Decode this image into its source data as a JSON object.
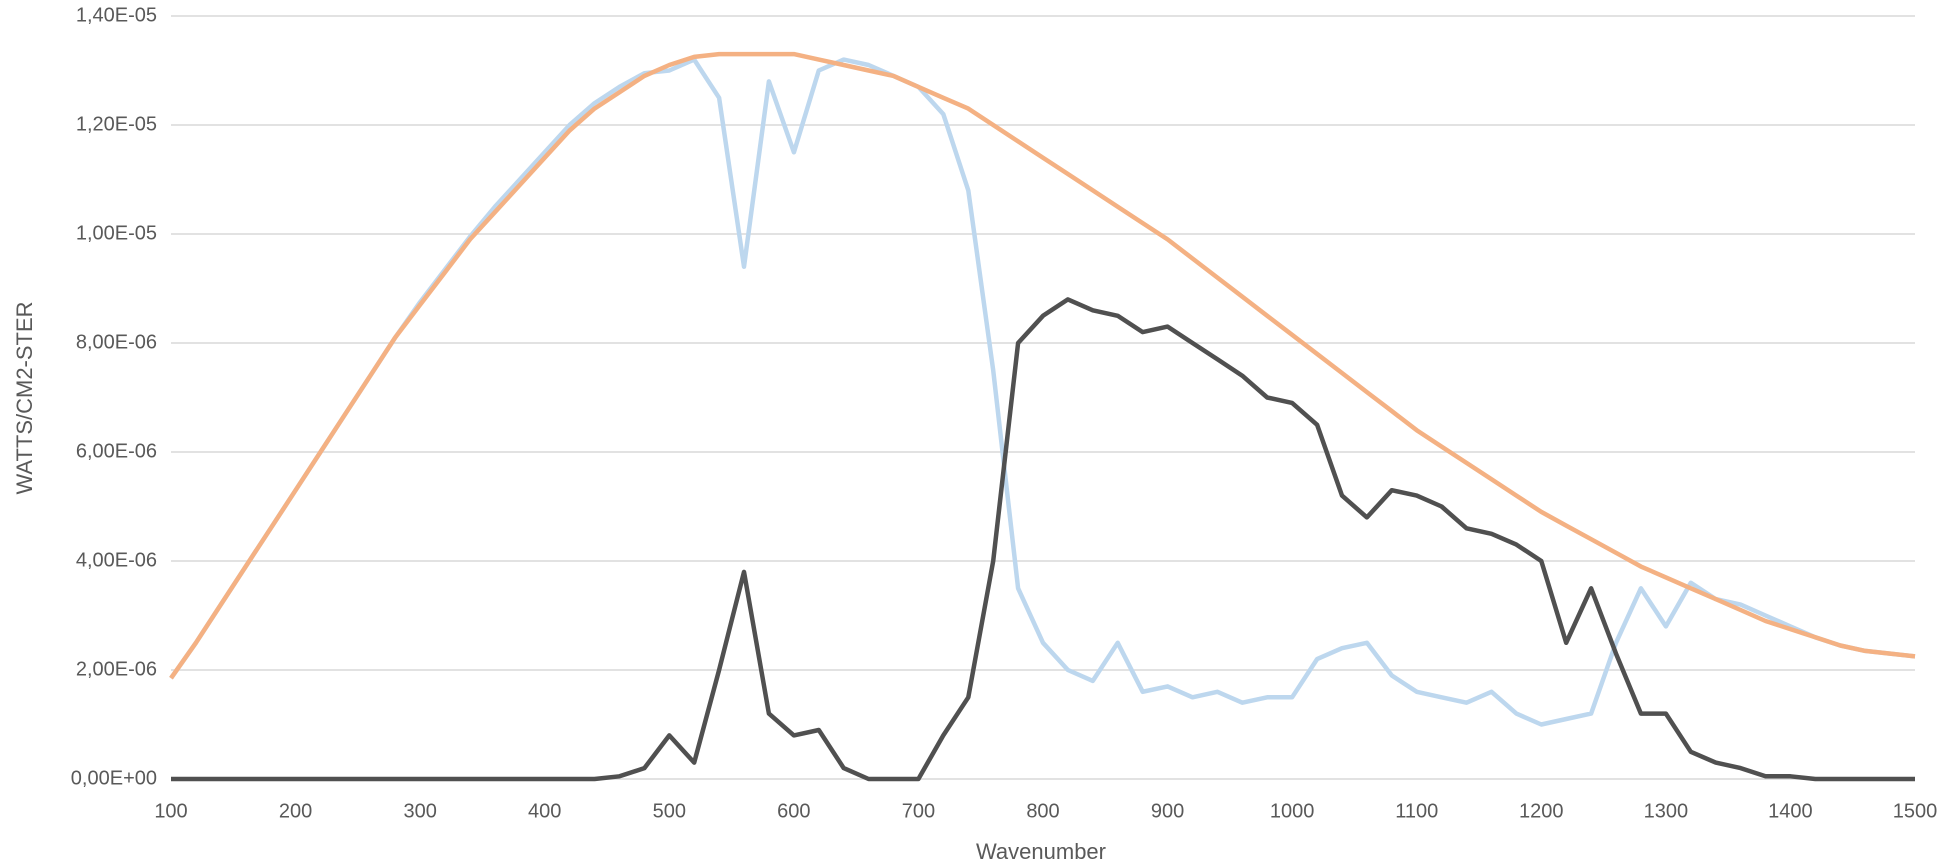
{
  "chart_data": {
    "type": "line",
    "xlabel": "Wavenumber",
    "ylabel": "WATTS/CM2-STER",
    "x": [
      100,
      120,
      140,
      160,
      180,
      200,
      220,
      240,
      260,
      280,
      300,
      320,
      340,
      360,
      380,
      400,
      420,
      440,
      460,
      480,
      500,
      520,
      540,
      560,
      580,
      600,
      620,
      640,
      660,
      680,
      700,
      720,
      740,
      760,
      780,
      800,
      820,
      840,
      860,
      880,
      900,
      920,
      940,
      960,
      980,
      1000,
      1020,
      1040,
      1060,
      1080,
      1100,
      1120,
      1140,
      1160,
      1180,
      1200,
      1220,
      1240,
      1260,
      1280,
      1300,
      1320,
      1340,
      1360,
      1380,
      1400,
      1420,
      1440,
      1460,
      1480,
      1500
    ],
    "series": [
      {
        "color": "#bdd7ee",
        "values": [
          1.85e-06,
          2.5e-06,
          3.2e-06,
          3.9e-06,
          4.6e-06,
          5.3e-06,
          6e-06,
          6.7e-06,
          7.4e-06,
          8.1e-06,
          8.75e-06,
          9.35e-06,
          9.95e-06,
          1.05e-05,
          1.1e-05,
          1.15e-05,
          1.2e-05,
          1.24e-05,
          1.27e-05,
          1.295e-05,
          1.3e-05,
          1.32e-05,
          1.25e-05,
          9.4e-06,
          1.28e-05,
          1.15e-05,
          1.3e-05,
          1.32e-05,
          1.31e-05,
          1.29e-05,
          1.27e-05,
          1.22e-05,
          1.08e-05,
          7.5e-06,
          3.5e-06,
          2.5e-06,
          2e-06,
          1.8e-06,
          2.5e-06,
          1.6e-06,
          1.7e-06,
          1.5e-06,
          1.6e-06,
          1.4e-06,
          1.5e-06,
          1.5e-06,
          2.2e-06,
          2.4e-06,
          2.5e-06,
          1.9e-06,
          1.6e-06,
          1.5e-06,
          1.4e-06,
          1.6e-06,
          1.2e-06,
          1e-06,
          1.1e-06,
          1.2e-06,
          2.5e-06,
          3.5e-06,
          2.8e-06,
          3.6e-06,
          3.3e-06,
          3.2e-06,
          3e-06,
          2.8e-06,
          2.6e-06,
          2.45e-06,
          2.35e-06,
          2.3e-06,
          2.25e-06
        ]
      },
      {
        "color": "#f4b183",
        "values": [
          1.85e-06,
          2.5e-06,
          3.2e-06,
          3.9e-06,
          4.6e-06,
          5.3e-06,
          6e-06,
          6.7e-06,
          7.4e-06,
          8.1e-06,
          8.7e-06,
          9.3e-06,
          9.9e-06,
          1.04e-05,
          1.09e-05,
          1.14e-05,
          1.19e-05,
          1.23e-05,
          1.26e-05,
          1.29e-05,
          1.31e-05,
          1.325e-05,
          1.33e-05,
          1.33e-05,
          1.33e-05,
          1.33e-05,
          1.32e-05,
          1.31e-05,
          1.3e-05,
          1.29e-05,
          1.27e-05,
          1.25e-05,
          1.23e-05,
          1.2e-05,
          1.17e-05,
          1.14e-05,
          1.11e-05,
          1.08e-05,
          1.05e-05,
          1.02e-05,
          9.9e-06,
          9.55e-06,
          9.2e-06,
          8.85e-06,
          8.5e-06,
          8.15e-06,
          7.8e-06,
          7.45e-06,
          7.1e-06,
          6.75e-06,
          6.4e-06,
          6.1e-06,
          5.8e-06,
          5.5e-06,
          5.2e-06,
          4.9e-06,
          4.65e-06,
          4.4e-06,
          4.15e-06,
          3.9e-06,
          3.7e-06,
          3.5e-06,
          3.3e-06,
          3.1e-06,
          2.9e-06,
          2.75e-06,
          2.6e-06,
          2.45e-06,
          2.35e-06,
          2.3e-06,
          2.25e-06
        ]
      },
      {
        "color": "#505050",
        "values": [
          0,
          0,
          0,
          0,
          0,
          0,
          0,
          0,
          0,
          0,
          0,
          0,
          0,
          0,
          0,
          0,
          0,
          0,
          5e-08,
          2e-07,
          8e-07,
          3e-07,
          2e-06,
          3.8e-06,
          1.2e-06,
          8e-07,
          9e-07,
          2e-07,
          0,
          0,
          0,
          8e-07,
          1.5e-06,
          4e-06,
          8e-06,
          8.5e-06,
          8.8e-06,
          8.6e-06,
          8.5e-06,
          8.2e-06,
          8.3e-06,
          8e-06,
          7.7e-06,
          7.4e-06,
          7e-06,
          6.9e-06,
          6.5e-06,
          5.2e-06,
          4.8e-06,
          5.3e-06,
          5.2e-06,
          5e-06,
          4.6e-06,
          4.5e-06,
          4.3e-06,
          4e-06,
          2.5e-06,
          3.5e-06,
          2.3e-06,
          1.2e-06,
          1.2e-06,
          5e-07,
          3e-07,
          2e-07,
          5e-08,
          5e-08,
          0,
          0,
          0,
          0,
          0
        ]
      }
    ],
    "xlim": [
      100,
      1500
    ],
    "xticks": [
      100,
      200,
      300,
      400,
      500,
      600,
      700,
      800,
      900,
      1000,
      1100,
      1200,
      1300,
      1400,
      1500
    ],
    "ylim": [
      0,
      1.4e-05
    ],
    "yticks": [
      {
        "value": 0,
        "label": "0,00E+00"
      },
      {
        "value": 2e-06,
        "label": "2,00E-06"
      },
      {
        "value": 4e-06,
        "label": "4,00E-06"
      },
      {
        "value": 6e-06,
        "label": "6,00E-06"
      },
      {
        "value": 8e-06,
        "label": "8,00E-06"
      },
      {
        "value": 1e-05,
        "label": "1,00E-05"
      },
      {
        "value": 1.2e-05,
        "label": "1,20E-05"
      },
      {
        "value": 1.4e-05,
        "label": "1,40E-05"
      }
    ],
    "grid": true
  }
}
